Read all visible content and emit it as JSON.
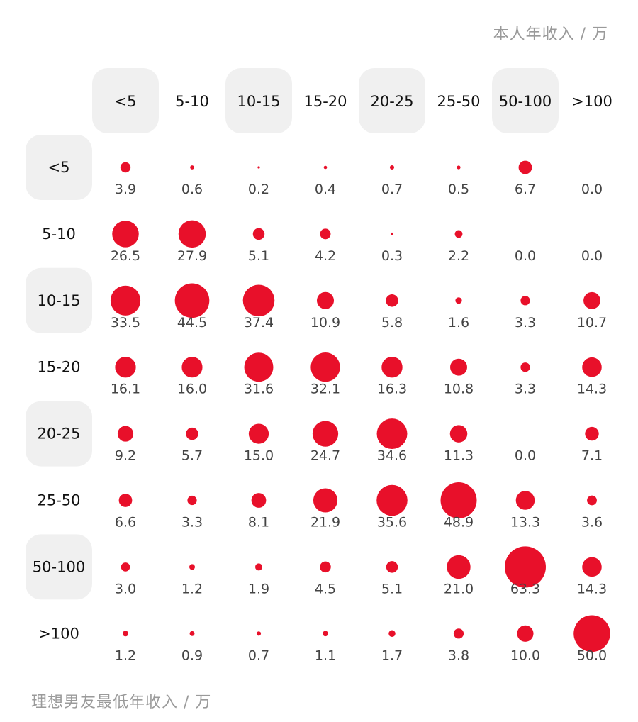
{
  "chart_data": {
    "type": "bubble-matrix",
    "x_axis_title": "本人年收入 / 万",
    "y_axis_title": "理想男友最低年收入 / 万",
    "x_categories": [
      "<5",
      "5-10",
      "10-15",
      "15-20",
      "20-25",
      "25-50",
      "50-100",
      ">100"
    ],
    "y_categories": [
      "<5",
      "5-10",
      "10-15",
      "15-20",
      "20-25",
      "25-50",
      "50-100",
      ">100"
    ],
    "values": [
      [
        "3.9",
        "0.6",
        "0.2",
        "0.4",
        "0.7",
        "0.5",
        "6.7",
        "0.0"
      ],
      [
        "26.5",
        "27.9",
        "5.1",
        "4.2",
        "0.3",
        "2.2",
        "0.0",
        "0.0"
      ],
      [
        "33.5",
        "44.5",
        "37.4",
        "10.9",
        "5.8",
        "1.6",
        "3.3",
        "10.7"
      ],
      [
        "16.1",
        "16.0",
        "31.6",
        "32.1",
        "16.3",
        "10.8",
        "3.3",
        "14.3"
      ],
      [
        "9.2",
        "5.7",
        "15.0",
        "24.7",
        "34.6",
        "11.3",
        "0.0",
        "7.1"
      ],
      [
        "6.6",
        "3.3",
        "8.1",
        "21.9",
        "35.6",
        "48.9",
        "13.3",
        "3.6"
      ],
      [
        "3.0",
        "1.2",
        "1.9",
        "4.5",
        "5.1",
        "21.0",
        "63.3",
        "14.3"
      ],
      [
        "1.2",
        "0.9",
        "0.7",
        "1.1",
        "1.7",
        "3.8",
        "10.0",
        "50.0"
      ]
    ],
    "bubble_color": "#e8102a",
    "highlight_color": "#f0f0f0",
    "grid": false
  }
}
